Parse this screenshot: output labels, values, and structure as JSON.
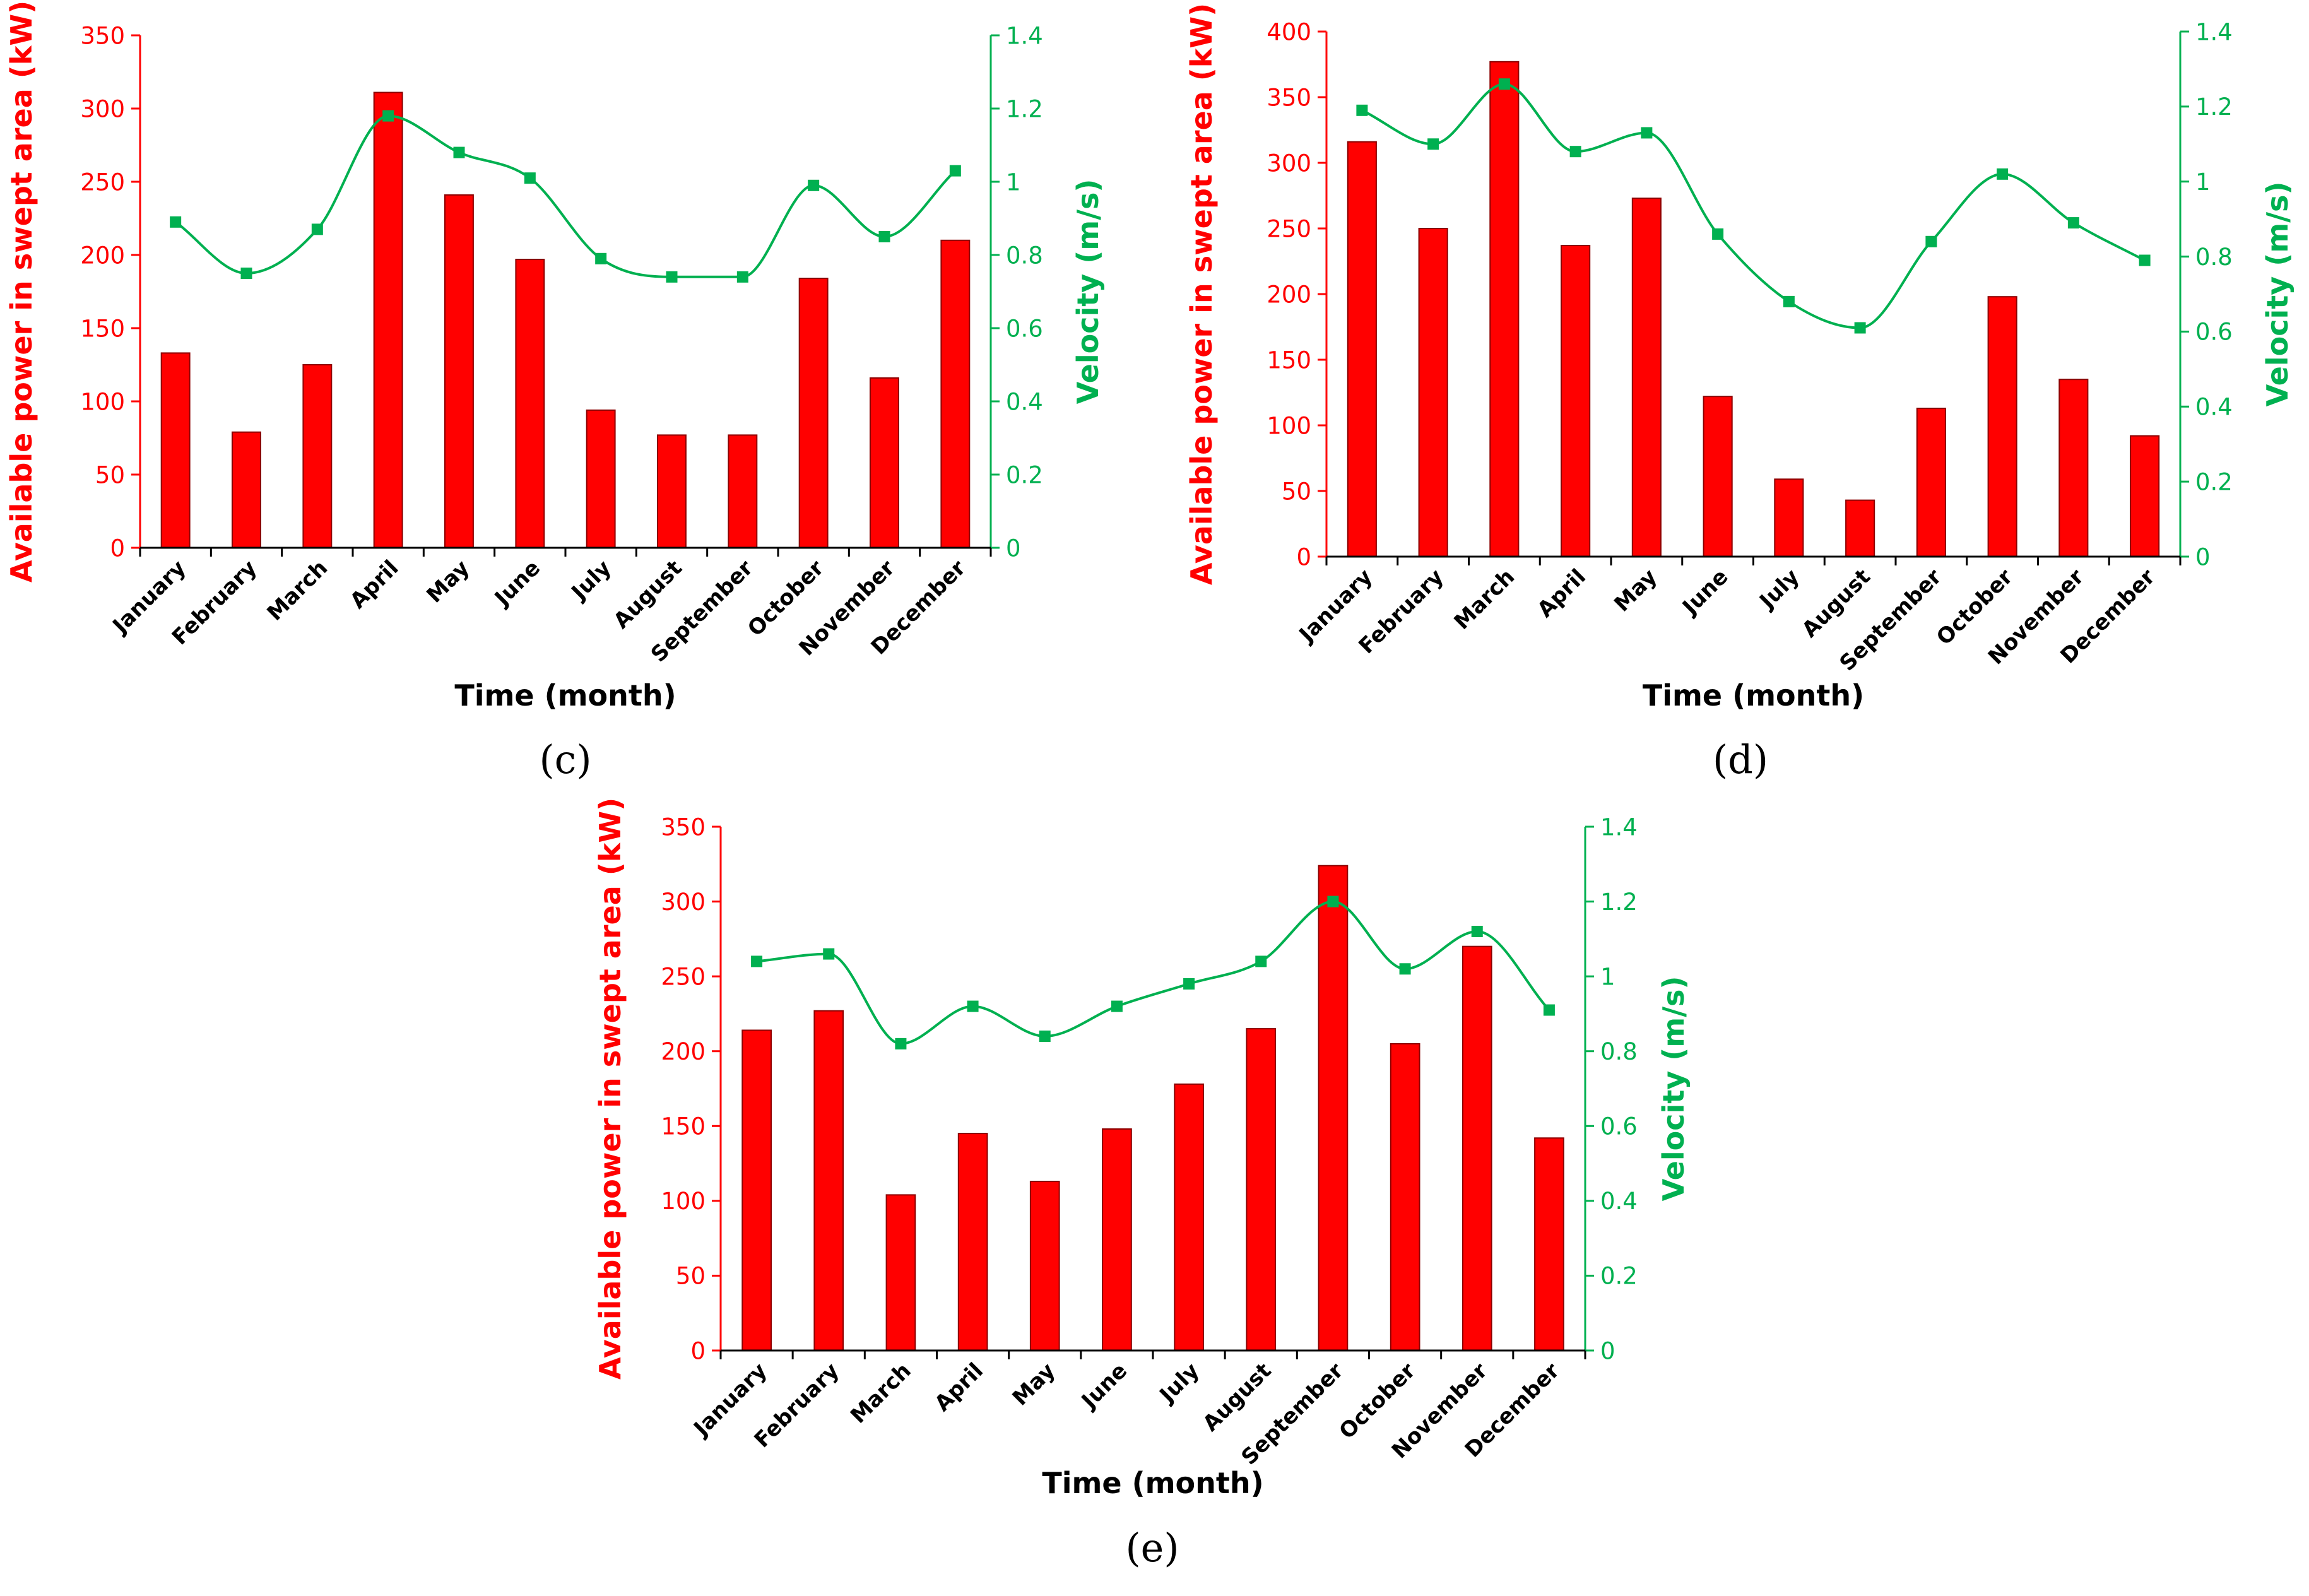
{
  "colors": {
    "bar": "#ff0000",
    "bar_stroke": "#8b0000",
    "line": "#00b050",
    "axis_left": "#ff0000",
    "axis_right": "#00b050",
    "text": "#000000"
  },
  "chart_data": [
    {
      "type": "bar",
      "panel_label": "(c)",
      "categories": [
        "January",
        "February",
        "March",
        "April",
        "May",
        "June",
        "July",
        "August",
        "September",
        "October",
        "November",
        "December"
      ],
      "series": [
        {
          "name": "Available power in swept area (kW)",
          "kind": "bar",
          "axis": "left",
          "values": [
            133,
            79,
            125,
            311,
            241,
            197,
            94,
            77,
            77,
            184,
            116,
            210
          ]
        },
        {
          "name": "Velocity (m/s)",
          "kind": "line",
          "axis": "right",
          "values": [
            0.89,
            0.75,
            0.87,
            1.18,
            1.08,
            1.01,
            0.79,
            0.74,
            0.74,
            0.99,
            0.85,
            1.03
          ]
        }
      ],
      "xlabel": "Time (month)",
      "ylabel": "Available power in swept area (kW)",
      "y2label": "Velocity (m/s)",
      "ylim": [
        0,
        350
      ],
      "yticks": [
        "0",
        "50",
        "100",
        "150",
        "200",
        "250",
        "300",
        "350"
      ],
      "y2lim": [
        0,
        1.4
      ],
      "y2ticks": [
        "0",
        "0.2",
        "0.4",
        "0.6",
        "0.8",
        "1",
        "1.2",
        "1.4"
      ],
      "grid": false
    },
    {
      "type": "bar",
      "panel_label": "(d)",
      "categories": [
        "January",
        "February",
        "March",
        "April",
        "May",
        "June",
        "July",
        "August",
        "September",
        "October",
        "November",
        "December"
      ],
      "series": [
        {
          "name": "Available power in swept area (kW)",
          "kind": "bar",
          "axis": "left",
          "values": [
            316,
            250,
            377,
            237,
            273,
            122,
            59,
            43,
            113,
            198,
            135,
            92
          ]
        },
        {
          "name": "Velocity (m/s)",
          "kind": "line",
          "axis": "right",
          "values": [
            1.19,
            1.1,
            1.26,
            1.08,
            1.13,
            0.86,
            0.68,
            0.61,
            0.84,
            1.02,
            0.89,
            0.79
          ]
        }
      ],
      "xlabel": "Time (month)",
      "ylabel": "Available power in swept area (kW)",
      "y2label": "Velocity (m/s)",
      "ylim": [
        0,
        400
      ],
      "yticks": [
        "0",
        "50",
        "100",
        "150",
        "200",
        "250",
        "300",
        "350",
        "400"
      ],
      "y2lim": [
        0,
        1.4
      ],
      "y2ticks": [
        "0",
        "0.2",
        "0.4",
        "0.6",
        "0.8",
        "1",
        "1.2",
        "1.4"
      ],
      "grid": false
    },
    {
      "type": "bar",
      "panel_label": "(e)",
      "categories": [
        "January",
        "February",
        "March",
        "April",
        "May",
        "June",
        "July",
        "August",
        "September",
        "October",
        "November",
        "December"
      ],
      "series": [
        {
          "name": "Available power in swept area (kW)",
          "kind": "bar",
          "axis": "left",
          "values": [
            214,
            227,
            104,
            145,
            113,
            148,
            178,
            215,
            324,
            205,
            270,
            142
          ]
        },
        {
          "name": "Velocity (m/s)",
          "kind": "line",
          "axis": "right",
          "values": [
            1.04,
            1.06,
            0.82,
            0.92,
            0.84,
            0.92,
            0.98,
            1.04,
            1.2,
            1.02,
            1.12,
            0.91
          ]
        }
      ],
      "xlabel": "Time (month)",
      "ylabel": "Available power in swept area (kW)",
      "y2label": "Velocity (m/s)",
      "ylim": [
        0,
        350
      ],
      "yticks": [
        "0",
        "50",
        "100",
        "150",
        "200",
        "250",
        "300",
        "350"
      ],
      "y2lim": [
        0,
        1.4
      ],
      "y2ticks": [
        "0",
        "0.2",
        "0.4",
        "0.6",
        "0.8",
        "1",
        "1.2",
        "1.4"
      ],
      "grid": false
    }
  ]
}
